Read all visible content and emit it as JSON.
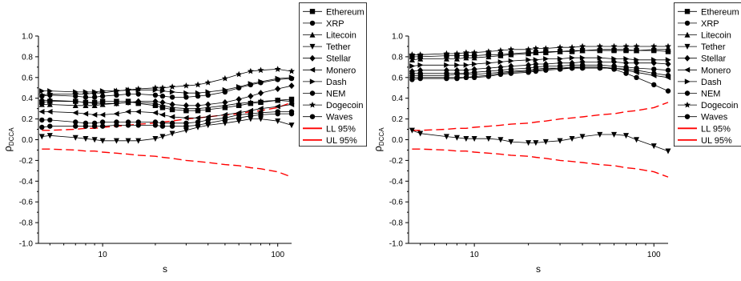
{
  "chart_data": [
    {
      "type": "line",
      "xlabel": "s",
      "ylabel_main": "ρ",
      "ylabel_sub": "DCCA",
      "xscale": "log",
      "xlim": [
        4.3,
        120
      ],
      "ylim": [
        -1.0,
        1.0
      ],
      "xticks": [
        10,
        100
      ],
      "xtick_labels": [
        "10",
        "100"
      ],
      "yticks": [
        -1.0,
        -0.8,
        -0.6,
        -0.4,
        -0.2,
        0.0,
        0.2,
        0.4,
        0.6,
        0.8,
        1.0
      ],
      "ytick_labels": [
        "-1.0",
        "-0.8",
        "-0.6",
        "-0.4",
        "-0.2",
        "0.0",
        "0.2",
        "0.4",
        "0.6",
        "0.8",
        "1.0"
      ],
      "grid": false,
      "legend_position": "outside-right",
      "x": [
        4.5,
        5,
        7,
        8,
        9,
        10,
        12,
        14,
        16,
        20,
        22,
        25,
        30,
        35,
        40,
        50,
        60,
        70,
        80,
        100,
        120
      ],
      "series": [
        {
          "name": "Ethereum",
          "marker": "square",
          "color": "#000000",
          "values": [
            0.36,
            0.37,
            0.37,
            0.36,
            0.36,
            0.37,
            0.37,
            0.37,
            0.35,
            0.33,
            0.31,
            0.29,
            0.28,
            0.28,
            0.29,
            0.31,
            0.33,
            0.35,
            0.36,
            0.38,
            0.39
          ]
        },
        {
          "name": "XRP",
          "marker": "circle",
          "color": "#000000",
          "values": [
            0.42,
            0.43,
            0.42,
            0.41,
            0.41,
            0.42,
            0.43,
            0.44,
            0.44,
            0.43,
            0.42,
            0.41,
            0.41,
            0.42,
            0.43,
            0.46,
            0.5,
            0.53,
            0.55,
            0.58,
            0.59
          ]
        },
        {
          "name": "Litecoin",
          "marker": "triangle-up",
          "color": "#000000",
          "values": [
            0.34,
            0.34,
            0.33,
            0.33,
            0.33,
            0.34,
            0.35,
            0.36,
            0.36,
            0.35,
            0.33,
            0.31,
            0.3,
            0.3,
            0.31,
            0.33,
            0.35,
            0.36,
            0.37,
            0.38,
            0.37
          ]
        },
        {
          "name": "Tether",
          "marker": "triangle-down",
          "color": "#000000",
          "values": [
            0.03,
            0.04,
            0.02,
            0.01,
            0.0,
            -0.01,
            -0.01,
            -0.01,
            -0.01,
            0.01,
            0.03,
            0.06,
            0.09,
            0.12,
            0.14,
            0.16,
            0.18,
            0.2,
            0.2,
            0.18,
            0.14
          ]
        },
        {
          "name": "Stellar",
          "marker": "diamond",
          "color": "#000000",
          "values": [
            0.38,
            0.38,
            0.37,
            0.36,
            0.35,
            0.35,
            0.35,
            0.36,
            0.37,
            0.37,
            0.36,
            0.34,
            0.33,
            0.33,
            0.34,
            0.36,
            0.39,
            0.42,
            0.45,
            0.49,
            0.52
          ]
        },
        {
          "name": "Monero",
          "marker": "triangle-left",
          "color": "#000000",
          "values": [
            0.27,
            0.27,
            0.26,
            0.25,
            0.24,
            0.24,
            0.25,
            0.27,
            0.27,
            0.26,
            0.24,
            0.22,
            0.21,
            0.21,
            0.22,
            0.24,
            0.26,
            0.28,
            0.3,
            0.32,
            0.34
          ]
        },
        {
          "name": "Dash",
          "marker": "triangle-right",
          "color": "#000000",
          "values": [
            0.47,
            0.47,
            0.46,
            0.46,
            0.46,
            0.47,
            0.47,
            0.48,
            0.48,
            0.48,
            0.47,
            0.46,
            0.45,
            0.45,
            0.46,
            0.48,
            0.51,
            0.54,
            0.56,
            0.59,
            0.6
          ]
        },
        {
          "name": "NEM",
          "marker": "circle",
          "color": "#000000",
          "values": [
            0.19,
            0.19,
            0.17,
            0.16,
            0.16,
            0.17,
            0.17,
            0.17,
            0.17,
            0.17,
            0.16,
            0.16,
            0.16,
            0.17,
            0.19,
            0.21,
            0.24,
            0.25,
            0.26,
            0.27,
            0.27
          ]
        },
        {
          "name": "Dogecoin",
          "marker": "star",
          "color": "#000000",
          "values": [
            0.43,
            0.44,
            0.44,
            0.44,
            0.45,
            0.45,
            0.47,
            0.48,
            0.49,
            0.5,
            0.5,
            0.51,
            0.52,
            0.53,
            0.55,
            0.59,
            0.63,
            0.66,
            0.67,
            0.68,
            0.66
          ]
        },
        {
          "name": "Waves",
          "marker": "circle",
          "color": "#000000",
          "values": [
            0.12,
            0.13,
            0.13,
            0.13,
            0.13,
            0.13,
            0.14,
            0.14,
            0.14,
            0.14,
            0.13,
            0.13,
            0.13,
            0.14,
            0.16,
            0.19,
            0.21,
            0.23,
            0.24,
            0.25,
            0.25
          ]
        }
      ],
      "bands": [
        {
          "name": "LL 95%",
          "color": "#ff0000",
          "dash": "dashed",
          "values": [
            0.09,
            0.09,
            0.1,
            0.11,
            0.11,
            0.12,
            0.13,
            0.14,
            0.15,
            0.16,
            0.17,
            0.18,
            0.2,
            0.21,
            0.22,
            0.24,
            0.25,
            0.27,
            0.28,
            0.31,
            0.36
          ]
        },
        {
          "name": "UL 95%",
          "color": "#ff0000",
          "dash": "dashed",
          "values": [
            -0.09,
            -0.09,
            -0.1,
            -0.11,
            -0.11,
            -0.12,
            -0.13,
            -0.14,
            -0.15,
            -0.16,
            -0.17,
            -0.18,
            -0.2,
            -0.21,
            -0.22,
            -0.24,
            -0.25,
            -0.27,
            -0.28,
            -0.31,
            -0.36
          ]
        }
      ]
    },
    {
      "type": "line",
      "xlabel": "s",
      "ylabel_main": "ρ",
      "ylabel_sub": "DCCA",
      "xscale": "log",
      "xlim": [
        4.3,
        120
      ],
      "ylim": [
        -1.0,
        1.0
      ],
      "xticks": [
        10,
        100
      ],
      "xtick_labels": [
        "10",
        "100"
      ],
      "yticks": [
        -1.0,
        -0.8,
        -0.6,
        -0.4,
        -0.2,
        0.0,
        0.2,
        0.4,
        0.6,
        0.8,
        1.0
      ],
      "ytick_labels": [
        "-1.0",
        "-0.8",
        "-0.6",
        "-0.4",
        "-0.2",
        "0.0",
        "0.2",
        "0.4",
        "0.6",
        "0.8",
        "1.0"
      ],
      "grid": false,
      "legend_position": "outside-right",
      "x": [
        4.5,
        5,
        7,
        8,
        9,
        10,
        12,
        14,
        16,
        20,
        22,
        25,
        30,
        35,
        40,
        50,
        60,
        70,
        80,
        100,
        120
      ],
      "series": [
        {
          "name": "Ethereum",
          "marker": "square",
          "color": "#000000",
          "values": [
            0.8,
            0.8,
            0.81,
            0.81,
            0.81,
            0.81,
            0.82,
            0.82,
            0.83,
            0.84,
            0.84,
            0.85,
            0.85,
            0.85,
            0.86,
            0.86,
            0.86,
            0.86,
            0.86,
            0.86,
            0.85
          ]
        },
        {
          "name": "XRP",
          "marker": "circle",
          "color": "#000000",
          "values": [
            0.64,
            0.64,
            0.64,
            0.64,
            0.64,
            0.65,
            0.66,
            0.67,
            0.68,
            0.69,
            0.7,
            0.71,
            0.71,
            0.72,
            0.72,
            0.72,
            0.71,
            0.7,
            0.69,
            0.68,
            0.67
          ]
        },
        {
          "name": "Litecoin",
          "marker": "triangle-up",
          "color": "#000000",
          "values": [
            0.77,
            0.78,
            0.78,
            0.78,
            0.79,
            0.79,
            0.8,
            0.81,
            0.82,
            0.83,
            0.84,
            0.84,
            0.85,
            0.86,
            0.86,
            0.87,
            0.87,
            0.87,
            0.86,
            0.87,
            0.87
          ]
        },
        {
          "name": "Tether",
          "marker": "triangle-down",
          "color": "#000000",
          "values": [
            0.09,
            0.06,
            0.03,
            0.02,
            0.01,
            0.01,
            0.01,
            0.0,
            -0.02,
            -0.03,
            -0.03,
            -0.02,
            -0.01,
            0.01,
            0.03,
            0.05,
            0.05,
            0.04,
            0.0,
            -0.06,
            -0.11
          ]
        },
        {
          "name": "Stellar",
          "marker": "diamond",
          "color": "#000000",
          "values": [
            0.66,
            0.67,
            0.67,
            0.67,
            0.67,
            0.68,
            0.69,
            0.7,
            0.71,
            0.72,
            0.73,
            0.73,
            0.74,
            0.74,
            0.75,
            0.75,
            0.75,
            0.74,
            0.74,
            0.74,
            0.73
          ]
        },
        {
          "name": "Monero",
          "marker": "triangle-left",
          "color": "#000000",
          "values": [
            0.62,
            0.62,
            0.62,
            0.63,
            0.63,
            0.63,
            0.64,
            0.65,
            0.66,
            0.67,
            0.68,
            0.69,
            0.69,
            0.7,
            0.7,
            0.7,
            0.69,
            0.67,
            0.65,
            0.62,
            0.6
          ]
        },
        {
          "name": "Dash",
          "marker": "triangle-right",
          "color": "#000000",
          "values": [
            0.71,
            0.72,
            0.72,
            0.72,
            0.72,
            0.73,
            0.74,
            0.75,
            0.76,
            0.77,
            0.77,
            0.78,
            0.78,
            0.79,
            0.79,
            0.79,
            0.78,
            0.78,
            0.77,
            0.77,
            0.77
          ]
        },
        {
          "name": "NEM",
          "marker": "circle",
          "color": "#000000",
          "values": [
            0.6,
            0.6,
            0.6,
            0.6,
            0.6,
            0.61,
            0.62,
            0.64,
            0.65,
            0.66,
            0.67,
            0.68,
            0.69,
            0.69,
            0.7,
            0.7,
            0.68,
            0.64,
            0.6,
            0.53,
            0.47
          ]
        },
        {
          "name": "Dogecoin",
          "marker": "star",
          "color": "#000000",
          "values": [
            0.82,
            0.82,
            0.83,
            0.83,
            0.84,
            0.84,
            0.85,
            0.86,
            0.87,
            0.87,
            0.88,
            0.88,
            0.89,
            0.89,
            0.9,
            0.9,
            0.9,
            0.9,
            0.9,
            0.9,
            0.9
          ]
        },
        {
          "name": "Waves",
          "marker": "circle",
          "color": "#000000",
          "values": [
            0.58,
            0.59,
            0.59,
            0.59,
            0.6,
            0.6,
            0.61,
            0.63,
            0.64,
            0.65,
            0.66,
            0.67,
            0.68,
            0.69,
            0.69,
            0.69,
            0.69,
            0.68,
            0.67,
            0.64,
            0.62
          ]
        }
      ],
      "bands": [
        {
          "name": "LL 95%",
          "color": "#ff0000",
          "dash": "dashed",
          "values": [
            0.09,
            0.09,
            0.1,
            0.11,
            0.11,
            0.12,
            0.13,
            0.14,
            0.15,
            0.16,
            0.17,
            0.18,
            0.2,
            0.21,
            0.22,
            0.24,
            0.25,
            0.27,
            0.28,
            0.31,
            0.36
          ]
        },
        {
          "name": "UL 95%",
          "color": "#ff0000",
          "dash": "dashed",
          "values": [
            -0.09,
            -0.09,
            -0.1,
            -0.11,
            -0.11,
            -0.12,
            -0.13,
            -0.14,
            -0.15,
            -0.16,
            -0.17,
            -0.18,
            -0.2,
            -0.21,
            -0.22,
            -0.24,
            -0.25,
            -0.27,
            -0.28,
            -0.31,
            -0.36
          ]
        }
      ]
    }
  ]
}
